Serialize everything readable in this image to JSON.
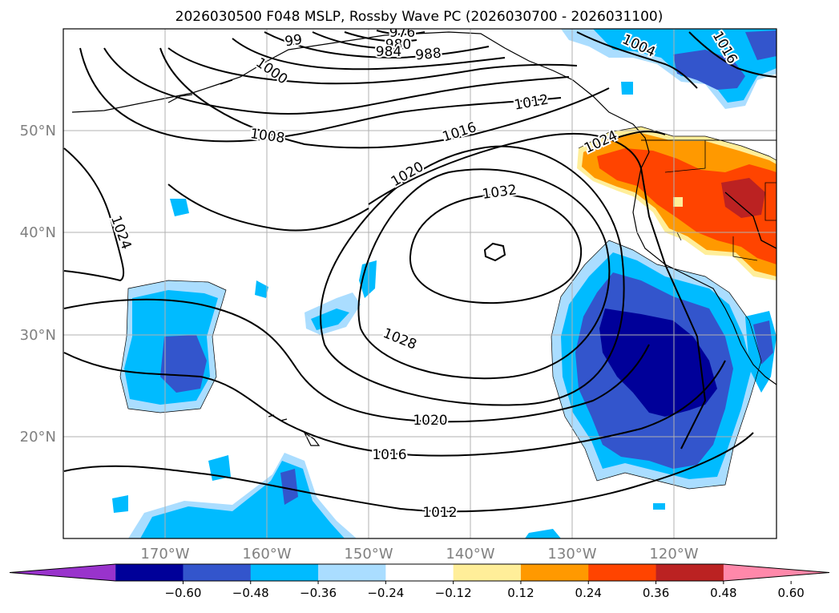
{
  "title": "2026030500 F048 MSLP, Rossby Wave PC (2026030700 - 2026031100)",
  "lat_labels": [
    "50°N",
    "40°N",
    "30°N",
    "20°N"
  ],
  "lon_labels": [
    "170°W",
    "160°W",
    "150°W",
    "140°W",
    "130°W",
    "120°W"
  ],
  "colorbar": {
    "ticks": [
      "−0.60",
      "−0.48",
      "−0.36",
      "−0.24",
      "−0.12",
      "0.12",
      "0.24",
      "0.36",
      "0.48",
      "0.60"
    ],
    "colors": [
      "#9933cc",
      "#000099",
      "#3355cc",
      "#00bbff",
      "#aaddff",
      "#ffffff",
      "#ffee99",
      "#ff9900",
      "#ff4400",
      "#bb2222",
      "#ff88aa"
    ]
  },
  "contour_labels": [
    "99",
    "976",
    "980",
    "984",
    "988",
    "1000",
    "1004",
    "1016",
    "1008",
    "1012",
    "1016",
    "1024",
    "1020",
    "1032",
    "1024",
    "1028",
    "1020",
    "1016",
    "1012"
  ],
  "colors": {
    "grid": "#b0b0b0",
    "axis_text": "#808080",
    "isobar": "#000000"
  }
}
